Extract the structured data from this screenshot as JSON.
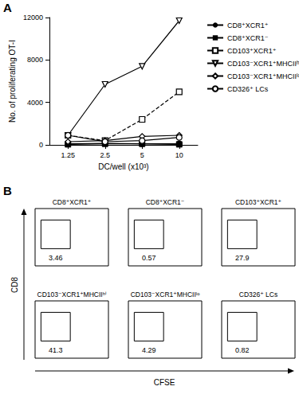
{
  "chart_data": [
    {
      "type": "line",
      "panel": "A",
      "x_label": "DC/well (x10³)",
      "y_label": "No. of proliferating OT-I",
      "categories": [
        "1.25",
        "2.5",
        "5",
        "10"
      ],
      "ylim": [
        0,
        12000
      ],
      "yticks": [
        0,
        4000,
        8000,
        12000
      ],
      "grid": false,
      "legend": "right",
      "series": [
        {
          "name": "CD8⁺XCR1⁺",
          "color": "#000000",
          "marker": "filled-circle",
          "line_style": "solid",
          "values": [
            100,
            150,
            100,
            100
          ]
        },
        {
          "name": "CD8⁺XCR1⁻",
          "color": "#000000",
          "marker": "filled-square",
          "line_style": "solid",
          "values": [
            50,
            100,
            100,
            50
          ]
        },
        {
          "name": "CD103⁺XCR1⁺",
          "color": "#000000",
          "marker": "open-square",
          "line_style": "dashed",
          "values": [
            900,
            400,
            2400,
            5000
          ]
        },
        {
          "name": "CD103⁻XCR1⁺MHCIIʰⁱ",
          "color": "#000000",
          "marker": "open-triangle-down",
          "line_style": "solid",
          "values": [
            900,
            5700,
            7400,
            11700
          ]
        },
        {
          "name": "CD103⁻XCR1⁺MHCIIˡᵒ",
          "color": "#000000",
          "marker": "open-diamond",
          "line_style": "solid",
          "values": [
            300,
            400,
            800,
            900
          ]
        },
        {
          "name": "CD326⁺ LCs",
          "color": "#000000",
          "marker": "open-circle",
          "line_style": "solid",
          "values": [
            900,
            300,
            400,
            700
          ]
        }
      ]
    },
    {
      "type": "scatter",
      "panel": "B",
      "x_label": "CFSE",
      "y_label": "CD8",
      "tick_labels": false,
      "plots": [
        {
          "title": "CD8⁺XCR1⁺",
          "gate_percent": 3.46
        },
        {
          "title": "CD8⁺XCR1⁻",
          "gate_percent": 0.57
        },
        {
          "title": "CD103⁺XCR1⁺",
          "gate_percent": 27.9
        },
        {
          "title": "CD103⁻XCR1⁺MHCIIʰⁱ",
          "gate_percent": 41.3
        },
        {
          "title": "CD103⁻XCR1⁺MHCIIˡᵒ",
          "gate_percent": 4.29
        },
        {
          "title": "CD326⁺ LCs",
          "gate_percent": 0.82
        }
      ]
    }
  ]
}
